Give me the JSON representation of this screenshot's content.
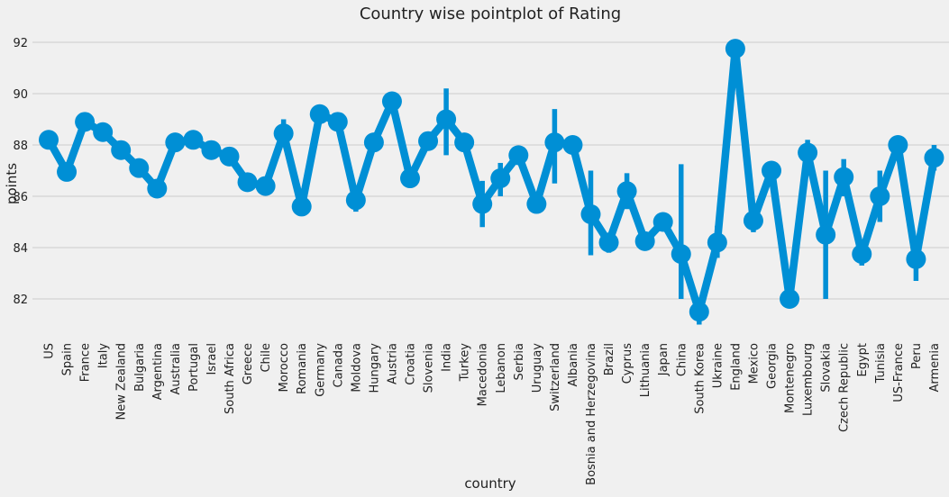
{
  "chart_data": {
    "type": "line",
    "title": "Country wise pointplot of Rating",
    "xlabel": "country",
    "ylabel": "points",
    "ylim": [
      80.6,
      92.7
    ],
    "yticks": [
      82,
      84,
      86,
      88,
      90,
      92
    ],
    "grid": "horizontal",
    "color": "#008fd5",
    "categories": [
      "US",
      "Spain",
      "France",
      "Italy",
      "New Zealand",
      "Bulgaria",
      "Argentina",
      "Australia",
      "Portugal",
      "Israel",
      "South Africa",
      "Greece",
      "Chile",
      "Morocco",
      "Romania",
      "Germany",
      "Canada",
      "Moldova",
      "Hungary",
      "Austria",
      "Croatia",
      "Slovenia",
      "India",
      "Turkey",
      "Macedonia",
      "Lebanon",
      "Serbia",
      "Uruguay",
      "Switzerland",
      "Albania",
      "Bosnia and Herzegovina",
      "Brazil",
      "Cyprus",
      "Lithuania",
      "Japan",
      "China",
      "South Korea",
      "Ukraine",
      "England",
      "Mexico",
      "Georgia",
      "Montenegro",
      "Luxembourg",
      "Slovakia",
      "Czech Republic",
      "Egypt",
      "Tunisia",
      "US-France",
      "Peru",
      "Armenia"
    ],
    "values": [
      88.2,
      86.95,
      88.9,
      88.5,
      87.8,
      87.1,
      86.3,
      88.1,
      88.2,
      87.8,
      87.55,
      86.55,
      86.4,
      88.45,
      85.6,
      89.2,
      88.9,
      85.85,
      88.1,
      89.7,
      86.7,
      88.15,
      89.0,
      88.1,
      85.7,
      86.7,
      87.6,
      85.7,
      88.1,
      88.0,
      85.3,
      84.2,
      86.2,
      84.25,
      85.0,
      83.75,
      81.5,
      84.2,
      91.75,
      85.05,
      87.0,
      82.0,
      87.7,
      84.5,
      86.75,
      83.75,
      86.0,
      88.0,
      83.55,
      87.5
    ],
    "ci": [
      [
        88.15,
        88.25
      ],
      [
        86.9,
        87.0
      ],
      [
        88.85,
        88.95
      ],
      [
        88.45,
        88.55
      ],
      [
        87.75,
        87.85
      ],
      [
        87.0,
        87.2
      ],
      [
        86.25,
        86.35
      ],
      [
        88.05,
        88.15
      ],
      [
        88.15,
        88.25
      ],
      [
        87.7,
        87.9
      ],
      [
        87.45,
        87.65
      ],
      [
        86.45,
        86.65
      ],
      [
        86.35,
        86.45
      ],
      [
        88.0,
        89.0
      ],
      [
        85.5,
        85.7
      ],
      [
        89.1,
        89.3
      ],
      [
        88.75,
        89.05
      ],
      [
        85.4,
        86.3
      ],
      [
        88.0,
        88.2
      ],
      [
        89.55,
        89.85
      ],
      [
        86.6,
        86.8
      ],
      [
        88.05,
        88.25
      ],
      [
        87.6,
        90.2
      ],
      [
        88.0,
        88.2
      ],
      [
        84.8,
        86.6
      ],
      [
        86.0,
        87.3
      ],
      [
        87.45,
        87.75
      ],
      [
        85.55,
        85.85
      ],
      [
        86.5,
        89.4
      ],
      [
        87.85,
        88.15
      ],
      [
        83.7,
        87.0
      ],
      [
        83.8,
        84.5
      ],
      [
        85.5,
        86.9
      ],
      [
        84.2,
        84.3
      ],
      [
        84.95,
        85.05
      ],
      [
        82.0,
        87.25
      ],
      [
        81.0,
        81.9
      ],
      [
        83.6,
        84.85
      ],
      [
        91.7,
        91.8
      ],
      [
        84.6,
        85.5
      ],
      [
        86.5,
        87.3
      ],
      [
        81.95,
        82.05
      ],
      [
        87.0,
        88.2
      ],
      [
        82.0,
        87.0
      ],
      [
        86.0,
        87.45
      ],
      [
        83.3,
        84.2
      ],
      [
        85.0,
        87.0
      ],
      [
        87.9,
        88.1
      ],
      [
        82.7,
        84.4
      ],
      [
        87.0,
        88.0
      ]
    ]
  }
}
